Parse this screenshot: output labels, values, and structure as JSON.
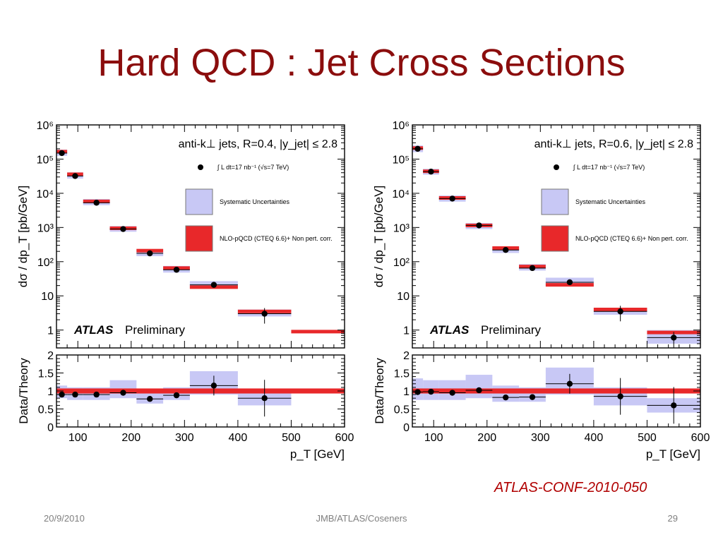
{
  "slide": {
    "title": "Hard QCD : Jet Cross Sections",
    "reference": "ATLAS-CONF-2010-050",
    "footer_date": "20/9/2010",
    "footer_center": "JMB/ATLAS/Coseners",
    "page_number": "29"
  },
  "colors": {
    "title": "#8b0d0d",
    "systematic": "#c8c8f5",
    "nlo": "#e8282a",
    "reference": "#b00000"
  },
  "chart_data": [
    {
      "type": "scatter",
      "header": "anti-k⊥ jets, R=0.4, |y_jet| ≤ 2.8",
      "lumi": "∫ L dt=17 nb⁻¹ (√s=7 TeV)",
      "legend": [
        "Systematic Uncertainties",
        "NLO-pQCD (CTEQ 6.6)+ Non pert. corr."
      ],
      "atlas_label": "ATLAS",
      "preliminary_label": "Preliminary",
      "ylabel": "dσ / dp_T [pb/GeV]",
      "ratio_ylabel": "Data/Theory",
      "xlabel": "p_T [GeV]",
      "xlim": [
        60,
        600
      ],
      "ylim_log": [
        0.3,
        1000000
      ],
      "ratio_ylim": [
        0,
        2
      ],
      "x_ticks": [
        "100",
        "200",
        "300",
        "400",
        "500",
        "600"
      ],
      "y_ticks": [
        "1",
        "10",
        "10²",
        "10³",
        "10⁴",
        "10⁵",
        "10⁶"
      ],
      "ratio_y_ticks": [
        "0",
        "0.5",
        "1",
        "1.5",
        "2"
      ],
      "bins": [
        {
          "lo": 60,
          "hi": 80,
          "x": 70,
          "data": 150000,
          "theory": 165000,
          "sys_lo": 125000,
          "sys_hi": 190000,
          "ratio": 0.9,
          "ratio_sys_lo": 0.8,
          "ratio_sys_hi": 1.15
        },
        {
          "lo": 80,
          "hi": 110,
          "x": 95,
          "data": 32000,
          "theory": 36000,
          "sys_lo": 27000,
          "sys_hi": 41000,
          "ratio": 0.9,
          "ratio_sys_lo": 0.75,
          "ratio_sys_hi": 1.1
        },
        {
          "lo": 110,
          "hi": 160,
          "x": 135,
          "data": 5300,
          "theory": 5800,
          "sys_lo": 4500,
          "sys_hi": 6800,
          "ratio": 0.9,
          "ratio_sys_lo": 0.75,
          "ratio_sys_hi": 1.1
        },
        {
          "lo": 160,
          "hi": 210,
          "x": 185,
          "data": 900,
          "theory": 950,
          "sys_lo": 750,
          "sys_hi": 1100,
          "ratio": 0.95,
          "ratio_sys_lo": 0.8,
          "ratio_sys_hi": 1.3
        },
        {
          "lo": 210,
          "hi": 260,
          "x": 235,
          "data": 175,
          "theory": 210,
          "sys_lo": 145,
          "sys_hi": 230,
          "ratio": 0.78,
          "ratio_sys_lo": 0.65,
          "ratio_sys_hi": 1.0
        },
        {
          "lo": 260,
          "hi": 310,
          "x": 285,
          "data": 58,
          "theory": 65,
          "sys_lo": 48,
          "sys_hi": 75,
          "ratio": 0.88,
          "ratio_sys_lo": 0.75,
          "ratio_sys_hi": 1.1
        },
        {
          "lo": 310,
          "hi": 400,
          "x": 355,
          "data": 21,
          "theory": 18,
          "sys_lo": 17,
          "sys_hi": 27,
          "ratio": 1.15,
          "ratio_sys_lo": 0.9,
          "ratio_sys_hi": 1.55
        },
        {
          "lo": 400,
          "hi": 500,
          "x": 450,
          "data": 3,
          "theory": 3.5,
          "sys_lo": 2.5,
          "sys_hi": 4,
          "ratio": 0.8,
          "ratio_sys_lo": 0.6,
          "ratio_sys_hi": 1.05
        },
        {
          "lo": 500,
          "hi": 600,
          "x": 550,
          "data": null,
          "theory": 0.9,
          "sys_lo": null,
          "sys_hi": null,
          "ratio": null,
          "ratio_sys_lo": null,
          "ratio_sys_hi": null
        }
      ]
    },
    {
      "type": "scatter",
      "header": "anti-k⊥ jets, R=0.6, |y_jet| ≤ 2.8",
      "lumi": "∫ L dt=17 nb⁻¹ (√s=7 TeV)",
      "legend": [
        "Systematic Uncertainties",
        "NLO-pQCD (CTEQ 6.6)+ Non pert. corr."
      ],
      "atlas_label": "ATLAS",
      "preliminary_label": "Preliminary",
      "ylabel": "dσ / dp_T [pb/GeV]",
      "ratio_ylabel": "Data/Theory",
      "xlabel": "p_T [GeV]",
      "xlim": [
        60,
        600
      ],
      "ylim_log": [
        0.3,
        1000000
      ],
      "ratio_ylim": [
        0,
        2
      ],
      "x_ticks": [
        "100",
        "200",
        "300",
        "400",
        "500",
        "600"
      ],
      "y_ticks": [
        "1",
        "10",
        "10²",
        "10³",
        "10⁴",
        "10⁵",
        "10⁶"
      ],
      "ratio_y_ticks": [
        "0",
        "0.5",
        "1",
        "1.5",
        "2"
      ],
      "bins": [
        {
          "lo": 60,
          "hi": 80,
          "x": 70,
          "data": 200000,
          "theory": 210000,
          "sys_lo": 160000,
          "sys_hi": 250000,
          "ratio": 0.97,
          "ratio_sys_lo": 0.75,
          "ratio_sys_hi": 1.35
        },
        {
          "lo": 80,
          "hi": 110,
          "x": 95,
          "data": 43000,
          "theory": 44000,
          "sys_lo": 35000,
          "sys_hi": 52000,
          "ratio": 0.98,
          "ratio_sys_lo": 0.75,
          "ratio_sys_hi": 1.3
        },
        {
          "lo": 110,
          "hi": 160,
          "x": 135,
          "data": 7000,
          "theory": 7300,
          "sys_lo": 5700,
          "sys_hi": 8600,
          "ratio": 0.95,
          "ratio_sys_lo": 0.75,
          "ratio_sys_hi": 1.3
        },
        {
          "lo": 160,
          "hi": 210,
          "x": 185,
          "data": 1150,
          "theory": 1150,
          "sys_lo": 900,
          "sys_hi": 1350,
          "ratio": 1.02,
          "ratio_sys_lo": 0.8,
          "ratio_sys_hi": 1.45
        },
        {
          "lo": 210,
          "hi": 260,
          "x": 235,
          "data": 220,
          "theory": 250,
          "sys_lo": 180,
          "sys_hi": 275,
          "ratio": 0.82,
          "ratio_sys_lo": 0.7,
          "ratio_sys_hi": 1.15
        },
        {
          "lo": 260,
          "hi": 310,
          "x": 285,
          "data": 65,
          "theory": 72,
          "sys_lo": 55,
          "sys_hi": 85,
          "ratio": 0.83,
          "ratio_sys_lo": 0.7,
          "ratio_sys_hi": 1.1
        },
        {
          "lo": 310,
          "hi": 400,
          "x": 355,
          "data": 25,
          "theory": 21,
          "sys_lo": 19,
          "sys_hi": 34,
          "ratio": 1.2,
          "ratio_sys_lo": 0.9,
          "ratio_sys_hi": 1.65
        },
        {
          "lo": 400,
          "hi": 500,
          "x": 450,
          "data": 3.5,
          "theory": 4,
          "sys_lo": 2.8,
          "sys_hi": 4.5,
          "ratio": 0.85,
          "ratio_sys_lo": 0.6,
          "ratio_sys_hi": 1.1
        },
        {
          "lo": 500,
          "hi": 600,
          "x": 550,
          "data": 0.6,
          "theory": 0.85,
          "sys_lo": 0.4,
          "sys_hi": 1.0,
          "ratio": 0.6,
          "ratio_sys_lo": 0.4,
          "ratio_sys_hi": 0.8
        }
      ]
    }
  ]
}
